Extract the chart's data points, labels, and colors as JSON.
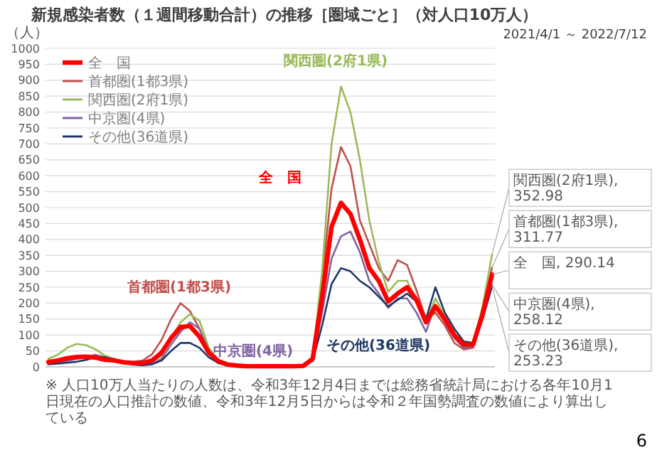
{
  "chart_data": {
    "type": "line",
    "title": "新規感染者数（１週間移動合計）の推移［圏域ごと］（対人口10万人）",
    "subtitle": "2021/4/1 ～ 2022/7/12",
    "ylabel": "（人）",
    "categories": [
      null,
      null,
      null,
      null,
      null,
      null,
      null,
      null,
      null,
      null,
      null,
      null,
      null,
      null,
      null,
      null,
      null,
      null,
      null,
      null,
      null,
      null,
      null,
      null,
      null,
      null,
      null,
      null,
      null,
      null,
      null,
      null,
      null,
      null,
      null,
      null,
      null,
      null,
      null,
      null,
      null,
      null,
      null,
      null,
      null,
      null,
      null,
      null
    ],
    "series": [
      {
        "name": "全　国",
        "color": "#ff0000",
        "values": [
          15,
          20,
          27,
          31,
          32,
          29,
          22,
          20,
          14,
          12,
          12,
          20,
          45,
          90,
          125,
          128,
          95,
          45,
          18,
          7,
          4,
          2,
          2,
          2,
          2,
          2,
          2,
          3,
          25,
          220,
          440,
          515,
          480,
          400,
          310,
          270,
          205,
          230,
          250,
          210,
          140,
          190,
          150,
          100,
          70,
          70,
          165,
          290.14
        ],
        "value_labels": [
          null,
          null,
          null,
          null,
          null,
          null,
          null,
          null,
          null,
          null,
          null,
          null,
          null,
          null,
          null,
          null,
          null,
          null,
          null,
          null,
          null,
          null,
          null,
          null,
          null,
          null,
          null,
          null,
          null,
          null,
          null,
          null,
          null,
          null,
          null,
          null,
          null,
          null,
          null,
          null,
          null,
          null,
          null,
          null,
          null,
          null,
          null,
          "全　国, 290.14"
        ]
      },
      {
        "name": "首都圏(1都3県)",
        "color": "#c0504d",
        "values": [
          15,
          18,
          22,
          26,
          28,
          28,
          25,
          22,
          17,
          16,
          20,
          40,
          85,
          150,
          200,
          175,
          120,
          45,
          14,
          5,
          3,
          2,
          2,
          2,
          2,
          2,
          2,
          3,
          20,
          270,
          560,
          690,
          630,
          460,
          385,
          310,
          270,
          335,
          320,
          240,
          150,
          170,
          130,
          75,
          55,
          60,
          175,
          311.77
        ],
        "value_labels": [
          null,
          null,
          null,
          null,
          null,
          null,
          null,
          null,
          null,
          null,
          null,
          null,
          null,
          null,
          null,
          null,
          null,
          null,
          null,
          null,
          null,
          null,
          null,
          null,
          null,
          null,
          null,
          null,
          null,
          null,
          null,
          null,
          null,
          null,
          null,
          null,
          null,
          null,
          null,
          null,
          null,
          null,
          null,
          null,
          null,
          null,
          null,
          "首都圏(1都3県), 311.77"
        ]
      },
      {
        "name": "関西圏(2府1県)",
        "color": "#9bbb59",
        "values": [
          25,
          38,
          60,
          72,
          68,
          55,
          35,
          25,
          15,
          12,
          10,
          15,
          35,
          90,
          140,
          165,
          145,
          60,
          20,
          6,
          3,
          2,
          2,
          2,
          2,
          2,
          2,
          3,
          30,
          300,
          700,
          880,
          800,
          650,
          460,
          330,
          235,
          270,
          270,
          210,
          140,
          215,
          160,
          100,
          70,
          75,
          190,
          352.98
        ],
        "value_labels": [
          null,
          null,
          null,
          null,
          null,
          null,
          null,
          null,
          null,
          null,
          null,
          null,
          null,
          null,
          null,
          null,
          null,
          null,
          null,
          null,
          null,
          null,
          null,
          null,
          null,
          null,
          null,
          null,
          null,
          null,
          null,
          null,
          null,
          null,
          null,
          null,
          null,
          null,
          null,
          null,
          null,
          null,
          null,
          null,
          null,
          null,
          null,
          "関西圏(2府1県), 352.98"
        ]
      },
      {
        "name": "中京圏(4県)",
        "color": "#8064a2",
        "values": [
          10,
          13,
          18,
          25,
          32,
          38,
          30,
          22,
          12,
          8,
          6,
          9,
          25,
          70,
          110,
          140,
          120,
          50,
          16,
          5,
          3,
          2,
          2,
          2,
          2,
          2,
          2,
          3,
          20,
          170,
          340,
          410,
          425,
          360,
          270,
          230,
          185,
          215,
          215,
          170,
          110,
          195,
          140,
          90,
          60,
          65,
          150,
          258.12
        ],
        "value_labels": [
          null,
          null,
          null,
          null,
          null,
          null,
          null,
          null,
          null,
          null,
          null,
          null,
          null,
          null,
          null,
          null,
          null,
          null,
          null,
          null,
          null,
          null,
          null,
          null,
          null,
          null,
          null,
          null,
          null,
          null,
          null,
          null,
          null,
          null,
          null,
          null,
          null,
          null,
          null,
          null,
          null,
          null,
          null,
          null,
          null,
          null,
          null,
          "中京圏(4県), 258.12"
        ]
      },
      {
        "name": "その他(36道県)",
        "color": "#1f3864",
        "values": [
          8,
          10,
          13,
          16,
          22,
          30,
          30,
          22,
          12,
          7,
          5,
          8,
          20,
          50,
          75,
          75,
          60,
          30,
          12,
          4,
          2,
          2,
          2,
          2,
          2,
          2,
          2,
          3,
          18,
          130,
          260,
          310,
          300,
          270,
          250,
          220,
          190,
          210,
          230,
          205,
          150,
          250,
          170,
          120,
          80,
          75,
          150,
          253.23
        ],
        "value_labels": [
          null,
          null,
          null,
          null,
          null,
          null,
          null,
          null,
          null,
          null,
          null,
          null,
          null,
          null,
          null,
          null,
          null,
          null,
          null,
          null,
          null,
          null,
          null,
          null,
          null,
          null,
          null,
          null,
          null,
          null,
          null,
          null,
          null,
          null,
          null,
          null,
          null,
          null,
          null,
          null,
          null,
          null,
          null,
          null,
          null,
          null,
          null,
          "その他(36道県), 253.23"
        ]
      }
    ],
    "ylim": [
      0,
      1000
    ],
    "yticks": [
      0,
      50,
      100,
      150,
      200,
      250,
      300,
      350,
      400,
      450,
      500,
      550,
      600,
      650,
      700,
      750,
      800,
      850,
      900,
      950,
      1000
    ],
    "grid": "y",
    "legend": "top left",
    "annotations": [
      "関西圏(2府1県)",
      "全　国",
      "首都圏(1都3県)",
      "中京圏(4県)",
      "その他(36道県)",
      "※ 人口10万人当たりの人数は、令和3年12月4日までは総務省統計局における各年10月1日現在の人口推計の数値、令和3年12月5日からは令和２年国勢調査の数値により算出している",
      "6"
    ]
  }
}
